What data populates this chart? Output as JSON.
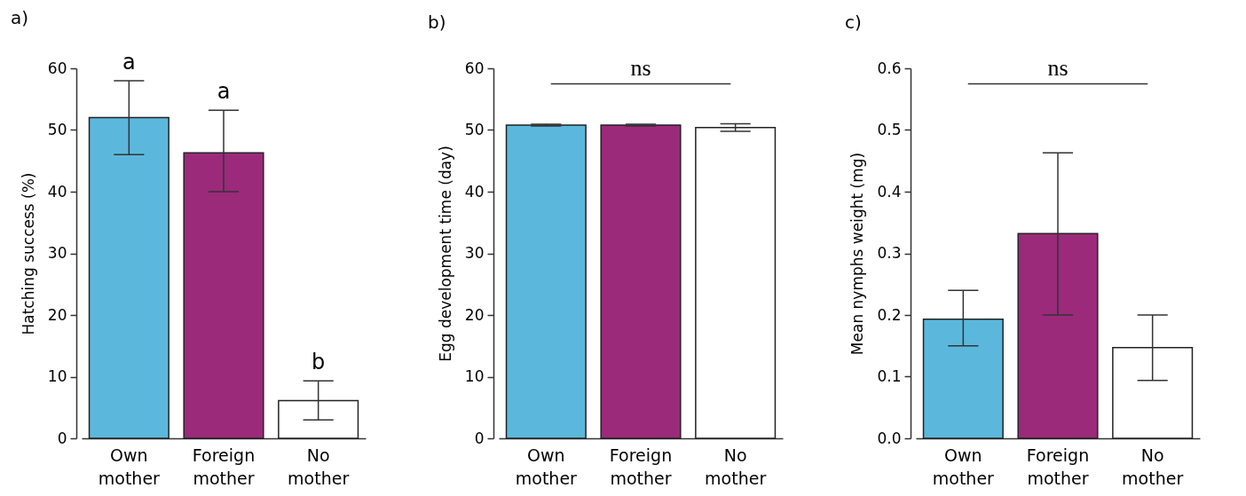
{
  "chart_data": [
    {
      "type": "bar",
      "title": "a)",
      "ylabel": "Hatching success (%)",
      "categories": [
        "Own mother",
        "Foreign mother",
        "No mother"
      ],
      "values": [
        52,
        46.3,
        6.1
      ],
      "colors": [
        "#5bb8dc",
        "#9b2a7b",
        "#ffffff"
      ],
      "errors": [
        [
          46,
          58
        ],
        [
          40,
          53.2
        ],
        [
          3,
          9.3
        ]
      ],
      "ylim": [
        0,
        60
      ],
      "yticks": [
        0,
        10,
        20,
        30,
        40,
        50,
        60
      ],
      "grid": false,
      "annotations": [
        "a",
        "a",
        "b"
      ]
    },
    {
      "type": "bar",
      "title": "b)",
      "ylabel": "Egg development time (day)",
      "categories": [
        "Own mother",
        "Foreign mother",
        "No mother"
      ],
      "values": [
        50.8,
        50.8,
        50.4
      ],
      "colors": [
        "#5bb8dc",
        "#9b2a7b",
        "#ffffff"
      ],
      "errors": [
        0.15,
        0.15,
        [
          49.8,
          51
        ]
      ],
      "ylim": [
        0,
        60
      ],
      "yticks": [
        0,
        10,
        20,
        30,
        40,
        50,
        60
      ],
      "grid": false,
      "annotations": [
        "ns"
      ]
    },
    {
      "type": "bar",
      "title": "c)",
      "ylabel": "Mean nymphs weight (mg)",
      "categories": [
        "Own mother",
        "Foreign mother",
        "No mother"
      ],
      "values": [
        0.193,
        0.332,
        0.147
      ],
      "colors": [
        "#5bb8dc",
        "#9b2a7b",
        "#ffffff"
      ],
      "errors": [
        [
          0.15,
          0.24
        ],
        [
          0.2,
          0.463
        ],
        [
          0.094,
          0.2
        ]
      ],
      "ylim": [
        0,
        0.6
      ],
      "yticks": [
        {
          "value": 0,
          "label": "0.0"
        },
        0.1,
        0.2,
        0.3,
        0.4,
        0.5,
        0.6
      ],
      "grid": false,
      "annotations": [
        "ns"
      ]
    }
  ]
}
